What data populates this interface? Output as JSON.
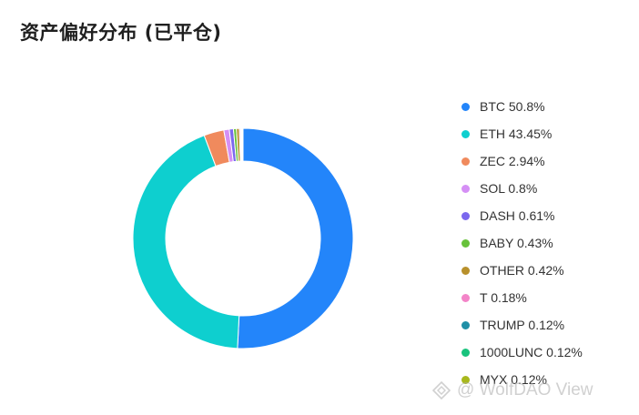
{
  "title": "资产偏好分布 (已平仓)",
  "watermark": "@ WolfDAO View",
  "chart_data": {
    "type": "pie",
    "donut": true,
    "title": "资产偏好分布 (已平仓)",
    "legend_position": "right",
    "slices": [
      {
        "label": "BTC 50.8%",
        "name": "BTC",
        "value": 50.8,
        "color": "#2385fa"
      },
      {
        "label": "ETH 43.45%",
        "name": "ETH",
        "value": 43.45,
        "color": "#0ecfcf"
      },
      {
        "label": "ZEC 2.94%",
        "name": "ZEC",
        "value": 2.94,
        "color": "#f08a5d"
      },
      {
        "label": "SOL 0.8%",
        "name": "SOL",
        "value": 0.8,
        "color": "#d58ff5"
      },
      {
        "label": "DASH 0.61%",
        "name": "DASH",
        "value": 0.61,
        "color": "#7b68ee"
      },
      {
        "label": "BABY 0.43%",
        "name": "BABY",
        "value": 0.43,
        "color": "#67c23a"
      },
      {
        "label": "OTHER 0.42%",
        "name": "OTHER",
        "value": 0.42,
        "color": "#b8902b"
      },
      {
        "label": "T 0.18%",
        "name": "T",
        "value": 0.18,
        "color": "#f384c8"
      },
      {
        "label": "TRUMP 0.12%",
        "name": "TRUMP",
        "value": 0.12,
        "color": "#1f8fa6"
      },
      {
        "label": "1000LUNC 0.12%",
        "name": "1000LUNC",
        "value": 0.12,
        "color": "#19c37d"
      },
      {
        "label": "MYX 0.12%",
        "name": "MYX",
        "value": 0.12,
        "color": "#a8b81c"
      }
    ]
  }
}
